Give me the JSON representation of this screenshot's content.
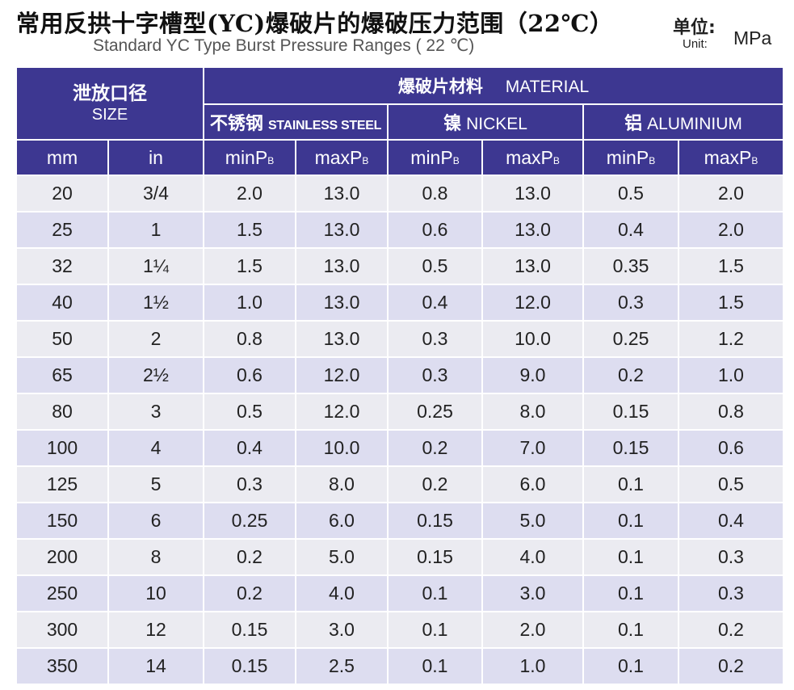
{
  "title": {
    "cn": "常用反拱十字槽型(YC)爆破片的爆破压力范围（22℃）",
    "en": "Standard YC Type Burst Pressure Ranges ( 22 ℃)"
  },
  "unit": {
    "cn": "单位:",
    "en": "Unit:",
    "value": "MPa"
  },
  "header": {
    "size_cn": "泄放口径",
    "size_en": "SIZE",
    "material_cn": "爆破片材料",
    "material_en": "MATERIAL",
    "materials": [
      {
        "cn": "不锈钢",
        "en": "STAINLESS STEEL"
      },
      {
        "cn": "镍",
        "en": "NICKEL"
      },
      {
        "cn": "铝",
        "en": "ALUMINIUM"
      }
    ],
    "columns": [
      {
        "label": "mm"
      },
      {
        "label": "in"
      },
      {
        "base": "minP",
        "sub": "B"
      },
      {
        "base": "maxP",
        "sub": "B"
      },
      {
        "base": "minP",
        "sub": "B"
      },
      {
        "base": "maxP",
        "sub": "B"
      },
      {
        "base": "minP",
        "sub": "B"
      },
      {
        "base": "maxP",
        "sub": "B"
      }
    ]
  },
  "rows": [
    [
      "20",
      "3/4",
      "2.0",
      "13.0",
      "0.8",
      "13.0",
      "0.5",
      "2.0"
    ],
    [
      "25",
      "1",
      "1.5",
      "13.0",
      "0.6",
      "13.0",
      "0.4",
      "2.0"
    ],
    [
      "32",
      "1¼",
      "1.5",
      "13.0",
      "0.5",
      "13.0",
      "0.35",
      "1.5"
    ],
    [
      "40",
      "1½",
      "1.0",
      "13.0",
      "0.4",
      "12.0",
      "0.3",
      "1.5"
    ],
    [
      "50",
      "2",
      "0.8",
      "13.0",
      "0.3",
      "10.0",
      "0.25",
      "1.2"
    ],
    [
      "65",
      "2½",
      "0.6",
      "12.0",
      "0.3",
      "9.0",
      "0.2",
      "1.0"
    ],
    [
      "80",
      "3",
      "0.5",
      "12.0",
      "0.25",
      "8.0",
      "0.15",
      "0.8"
    ],
    [
      "100",
      "4",
      "0.4",
      "10.0",
      "0.2",
      "7.0",
      "0.15",
      "0.6"
    ],
    [
      "125",
      "5",
      "0.3",
      "8.0",
      "0.2",
      "6.0",
      "0.1",
      "0.5"
    ],
    [
      "150",
      "6",
      "0.25",
      "6.0",
      "0.15",
      "5.0",
      "0.1",
      "0.4"
    ],
    [
      "200",
      "8",
      "0.2",
      "5.0",
      "0.15",
      "4.0",
      "0.1",
      "0.3"
    ],
    [
      "250",
      "10",
      "0.2",
      "4.0",
      "0.1",
      "3.0",
      "0.1",
      "0.3"
    ],
    [
      "300",
      "12",
      "0.15",
      "3.0",
      "0.1",
      "2.0",
      "0.1",
      "0.2"
    ],
    [
      "350",
      "14",
      "0.15",
      "2.5",
      "0.1",
      "1.0",
      "0.1",
      "0.2"
    ]
  ]
}
